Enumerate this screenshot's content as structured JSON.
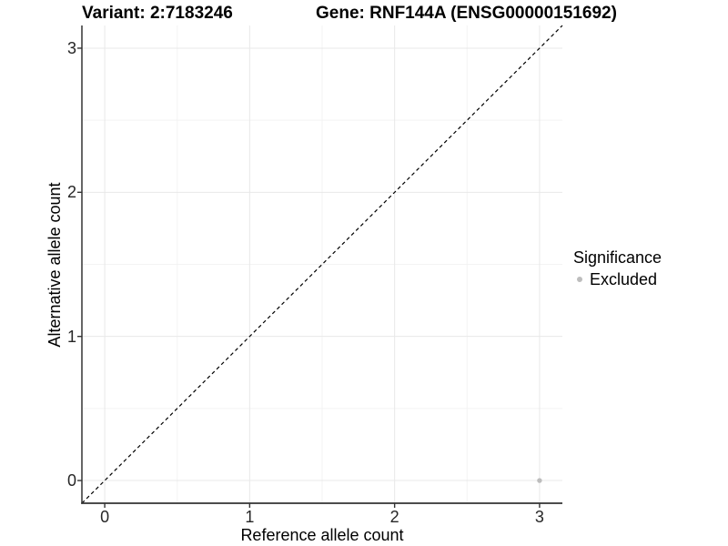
{
  "chart_data": {
    "type": "scatter",
    "title_left": "Variant: 2:7183246",
    "title_right": "Gene: RNF144A (ENSG00000151692)",
    "xlabel": "Reference allele count",
    "ylabel": "Alternative allele count",
    "xlim": [
      -0.1575,
      3.1575
    ],
    "ylim": [
      -0.1575,
      3.1575
    ],
    "x_ticks": [
      0,
      1,
      2,
      3
    ],
    "y_ticks": [
      0,
      1,
      2,
      3
    ],
    "x_minor_ticks": [
      0.5,
      1.5,
      2.5
    ],
    "y_minor_ticks": [
      0.5,
      1.5,
      2.5
    ],
    "grid": "major-and-minor",
    "points": [
      {
        "x": 3,
        "y": 0,
        "series": "Excluded"
      }
    ],
    "reference_line": {
      "kind": "identity y=x",
      "from": [
        -0.1575,
        -0.1575
      ],
      "to": [
        3.1575,
        3.1575
      ],
      "style": "dashed",
      "color": "#000000"
    },
    "legend": {
      "title": "Significance",
      "position": "right",
      "entries": [
        {
          "label": "Excluded",
          "color": "#bdbdbd"
        }
      ]
    },
    "colors": {
      "background": "#ffffff",
      "grid_major": "#e8e8e8",
      "grid_minor": "#f3f3f3",
      "axis_line": "#333333",
      "tick_text": "#262626",
      "point_excluded": "#bdbdbd",
      "dashed_line": "#000000"
    }
  }
}
